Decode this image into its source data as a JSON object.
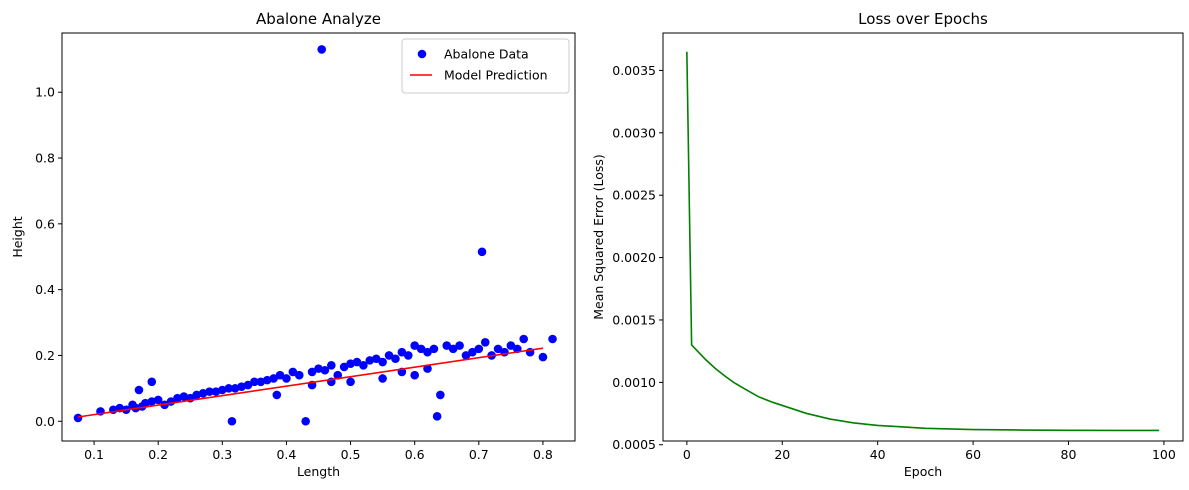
{
  "chart_data": [
    {
      "type": "scatter",
      "title": "Abalone Analyze",
      "xlabel": "Length",
      "ylabel": "Height",
      "xlim": [
        0.05,
        0.85
      ],
      "ylim": [
        -0.06,
        1.18
      ],
      "xticks": [
        0.1,
        0.2,
        0.3,
        0.4,
        0.5,
        0.6,
        0.7,
        0.8
      ],
      "yticks": [
        0.0,
        0.2,
        0.4,
        0.6,
        0.8,
        1.0
      ],
      "grid": false,
      "legend_position": "top-right",
      "series": [
        {
          "name": "Abalone Data",
          "kind": "scatter",
          "color": "#0000ff",
          "points": [
            [
              0.075,
              0.01
            ],
            [
              0.11,
              0.03
            ],
            [
              0.13,
              0.035
            ],
            [
              0.14,
              0.04
            ],
            [
              0.15,
              0.035
            ],
            [
              0.16,
              0.05
            ],
            [
              0.165,
              0.04
            ],
            [
              0.17,
              0.095
            ],
            [
              0.175,
              0.045
            ],
            [
              0.18,
              0.055
            ],
            [
              0.19,
              0.12
            ],
            [
              0.19,
              0.06
            ],
            [
              0.2,
              0.065
            ],
            [
              0.21,
              0.05
            ],
            [
              0.22,
              0.06
            ],
            [
              0.23,
              0.07
            ],
            [
              0.24,
              0.075
            ],
            [
              0.25,
              0.07
            ],
            [
              0.26,
              0.08
            ],
            [
              0.27,
              0.085
            ],
            [
              0.28,
              0.09
            ],
            [
              0.29,
              0.09
            ],
            [
              0.3,
              0.095
            ],
            [
              0.31,
              0.1
            ],
            [
              0.315,
              0.0
            ],
            [
              0.32,
              0.1
            ],
            [
              0.33,
              0.105
            ],
            [
              0.34,
              0.11
            ],
            [
              0.35,
              0.12
            ],
            [
              0.36,
              0.12
            ],
            [
              0.37,
              0.125
            ],
            [
              0.38,
              0.13
            ],
            [
              0.385,
              0.08
            ],
            [
              0.39,
              0.14
            ],
            [
              0.4,
              0.13
            ],
            [
              0.41,
              0.15
            ],
            [
              0.42,
              0.14
            ],
            [
              0.43,
              0.0
            ],
            [
              0.44,
              0.15
            ],
            [
              0.45,
              0.16
            ],
            [
              0.455,
              1.13
            ],
            [
              0.46,
              0.155
            ],
            [
              0.47,
              0.17
            ],
            [
              0.48,
              0.14
            ],
            [
              0.49,
              0.165
            ],
            [
              0.5,
              0.175
            ],
            [
              0.51,
              0.18
            ],
            [
              0.52,
              0.17
            ],
            [
              0.53,
              0.185
            ],
            [
              0.54,
              0.19
            ],
            [
              0.55,
              0.18
            ],
            [
              0.56,
              0.2
            ],
            [
              0.57,
              0.19
            ],
            [
              0.58,
              0.21
            ],
            [
              0.59,
              0.2
            ],
            [
              0.6,
              0.23
            ],
            [
              0.61,
              0.22
            ],
            [
              0.62,
              0.21
            ],
            [
              0.63,
              0.22
            ],
            [
              0.635,
              0.015
            ],
            [
              0.64,
              0.08
            ],
            [
              0.65,
              0.23
            ],
            [
              0.66,
              0.22
            ],
            [
              0.67,
              0.23
            ],
            [
              0.68,
              0.2
            ],
            [
              0.69,
              0.21
            ],
            [
              0.7,
              0.22
            ],
            [
              0.705,
              0.515
            ],
            [
              0.71,
              0.24
            ],
            [
              0.72,
              0.2
            ],
            [
              0.73,
              0.22
            ],
            [
              0.74,
              0.21
            ],
            [
              0.75,
              0.23
            ],
            [
              0.76,
              0.22
            ],
            [
              0.77,
              0.25
            ],
            [
              0.78,
              0.21
            ],
            [
              0.8,
              0.195
            ],
            [
              0.815,
              0.25
            ],
            [
              0.44,
              0.11
            ],
            [
              0.5,
              0.12
            ],
            [
              0.55,
              0.13
            ],
            [
              0.6,
              0.14
            ],
            [
              0.62,
              0.16
            ],
            [
              0.47,
              0.12
            ],
            [
              0.58,
              0.15
            ]
          ]
        },
        {
          "name": "Model Prediction",
          "kind": "line",
          "color": "#ff0000",
          "points": [
            [
              0.075,
              0.013
            ],
            [
              0.8,
              0.222
            ]
          ]
        }
      ]
    },
    {
      "type": "line",
      "title": "Loss over Epochs",
      "xlabel": "Epoch",
      "ylabel": "Mean Squared Error (Loss)",
      "xlim": [
        -5,
        104
      ],
      "ylim": [
        0.00053,
        0.0038
      ],
      "xticks": [
        0,
        20,
        40,
        60,
        80,
        100
      ],
      "yticks": [
        0.0005,
        0.001,
        0.0015,
        0.002,
        0.0025,
        0.003,
        0.0035
      ],
      "ytick_labels": [
        "0.0005",
        "0.0010",
        "0.0015",
        "0.0020",
        "0.0025",
        "0.0030",
        "0.0035"
      ],
      "grid": false,
      "series": [
        {
          "kind": "line",
          "color": "#008000",
          "x": [
            0,
            1,
            2,
            3,
            4,
            5,
            6,
            8,
            10,
            12,
            15,
            18,
            20,
            25,
            30,
            35,
            40,
            50,
            60,
            70,
            80,
            90,
            99
          ],
          "y": [
            0.00365,
            0.0013,
            0.00126,
            0.00122,
            0.00118,
            0.001145,
            0.00111,
            0.00105,
            0.000995,
            0.00095,
            0.000885,
            0.00084,
            0.000815,
            0.000752,
            0.000706,
            0.000675,
            0.000655,
            0.000632,
            0.000622,
            0.000618,
            0.000616,
            0.000615,
            0.000615
          ]
        }
      ]
    }
  ]
}
